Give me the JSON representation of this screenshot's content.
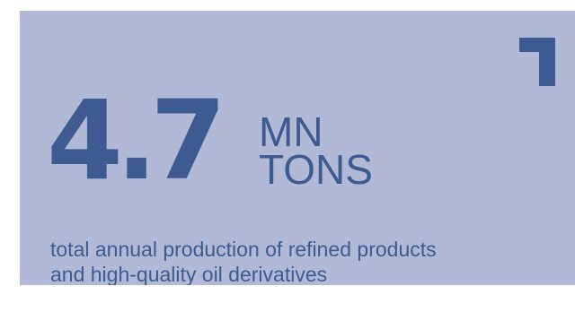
{
  "stat": {
    "value": "4.7",
    "unit_line1": "MN",
    "unit_line2": "TONS",
    "description_line1": "total annual production of refined products",
    "description_line2": "and high-quality oil derivatives"
  },
  "colors": {
    "background": "#b1b9d6",
    "accent": "#3d5b91"
  },
  "icons": {
    "corner": "corner-bracket-icon"
  }
}
